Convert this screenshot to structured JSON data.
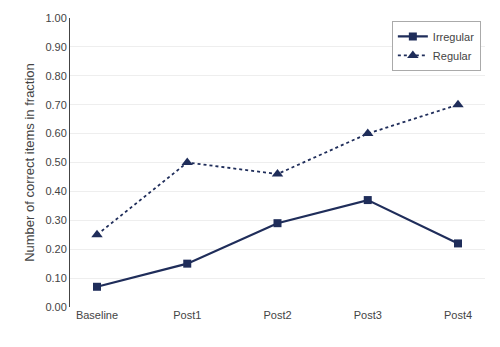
{
  "chart_data": {
    "type": "line",
    "categories": [
      "Baseline",
      "Post1",
      "Post2",
      "Post3",
      "Post4"
    ],
    "series": [
      {
        "name": "Irregular",
        "color": "#1f2d5a",
        "marker": "square",
        "line_style": "solid",
        "values": [
          0.07,
          0.15,
          0.29,
          0.37,
          0.22
        ]
      },
      {
        "name": "Regular",
        "color": "#1f2d5a",
        "marker": "triangle-up",
        "line_style": "dotted",
        "values": [
          0.25,
          0.5,
          0.46,
          0.6,
          0.7
        ]
      }
    ],
    "ylabel": "Number of correct items in fraction",
    "ylim": [
      0.0,
      1.0
    ],
    "yticks": [
      {
        "value": 0.0,
        "label": "0.00"
      },
      {
        "value": 0.1,
        "label": "0.10"
      },
      {
        "value": 0.2,
        "label": "0.20"
      },
      {
        "value": 0.3,
        "label": "0.30"
      },
      {
        "value": 0.4,
        "label": "0.40"
      },
      {
        "value": 0.5,
        "label": "0.50"
      },
      {
        "value": 0.6,
        "label": "0.60"
      },
      {
        "value": 0.7,
        "label": "0.70"
      },
      {
        "value": 0.8,
        "label": "0.80"
      },
      {
        "value": 0.9,
        "label": "0.90"
      },
      {
        "value": 1.0,
        "label": "1.00"
      }
    ],
    "grid": true,
    "legend": "upper right"
  }
}
